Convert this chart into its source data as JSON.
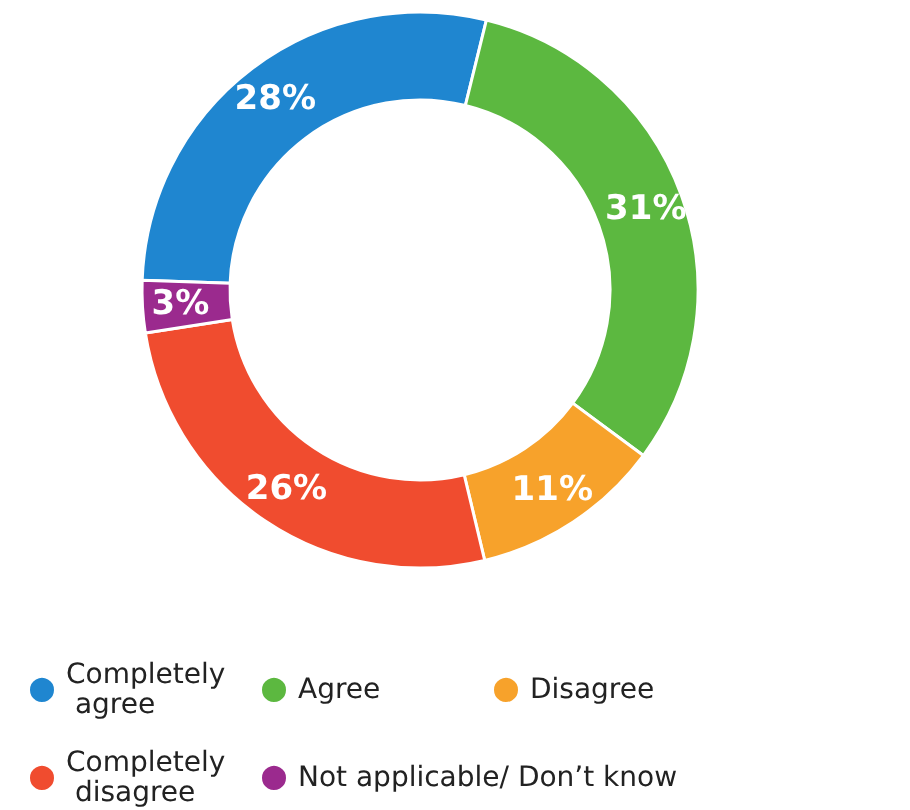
{
  "chart_data": {
    "type": "donut",
    "categories": [
      "Completely agree",
      "Agree",
      "Disagree",
      "Completely disagree",
      "Not applicable/ Don’t know"
    ],
    "values": [
      28,
      31,
      11,
      26,
      3
    ],
    "colors": [
      "#1f86d0",
      "#5cb840",
      "#f7a22b",
      "#f04c2f",
      "#9b2a8e"
    ],
    "value_labels": [
      "28%",
      "31%",
      "11%",
      "26%",
      "3%"
    ],
    "legend": "bottom"
  }
}
